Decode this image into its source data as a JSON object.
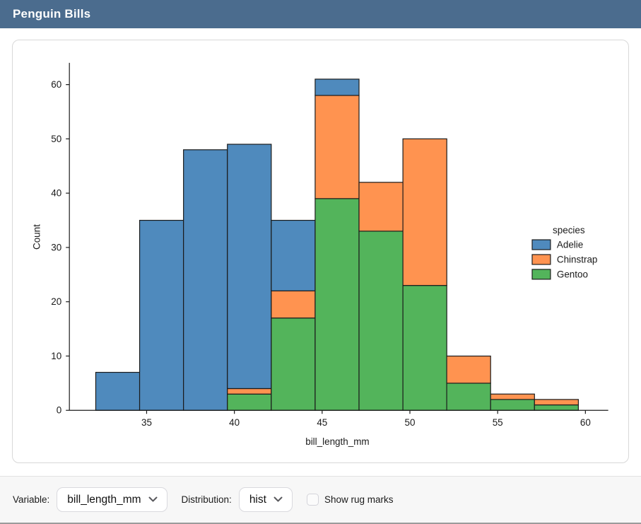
{
  "header": {
    "title": "Penguin Bills",
    "bg_color": "#4b6c8e"
  },
  "chart_data": {
    "type": "histogram",
    "stacked": true,
    "title": "",
    "xlabel": "bill_length_mm",
    "ylabel": "Count",
    "bin_edges": [
      32.1,
      34.6,
      37.1,
      39.6,
      42.1,
      44.6,
      47.1,
      49.6,
      52.1,
      54.6,
      57.1,
      59.6
    ],
    "series": [
      {
        "name": "Adelie",
        "color": "#4f8abd",
        "values": [
          7,
          35,
          48,
          45,
          13,
          3,
          0,
          0,
          0,
          0,
          0
        ]
      },
      {
        "name": "Chinstrap",
        "color": "#ff9350",
        "values": [
          0,
          0,
          0,
          1,
          5,
          19,
          9,
          27,
          5,
          1,
          1
        ]
      },
      {
        "name": "Gentoo",
        "color": "#53b45b",
        "values": [
          0,
          0,
          0,
          3,
          17,
          39,
          33,
          23,
          5,
          2,
          1
        ]
      }
    ],
    "stack_order_bottom_to_top": [
      "Gentoo",
      "Chinstrap",
      "Adelie"
    ],
    "x_ticks": [
      35,
      40,
      45,
      50,
      55,
      60
    ],
    "y_ticks": [
      0,
      10,
      20,
      30,
      40,
      50,
      60
    ],
    "xlim": [
      30.6,
      61.3
    ],
    "ylim": [
      0,
      64
    ],
    "edge_color": "#1b1b1b",
    "legend": {
      "title": "species",
      "position": "right",
      "entries": [
        "Adelie",
        "Chinstrap",
        "Gentoo"
      ]
    },
    "grid": false
  },
  "controls": {
    "variable_label": "Variable:",
    "variable_value": "bill_length_mm",
    "distribution_label": "Distribution:",
    "distribution_value": "hist",
    "rug_label": "Show rug marks",
    "rug_checked": false
  }
}
